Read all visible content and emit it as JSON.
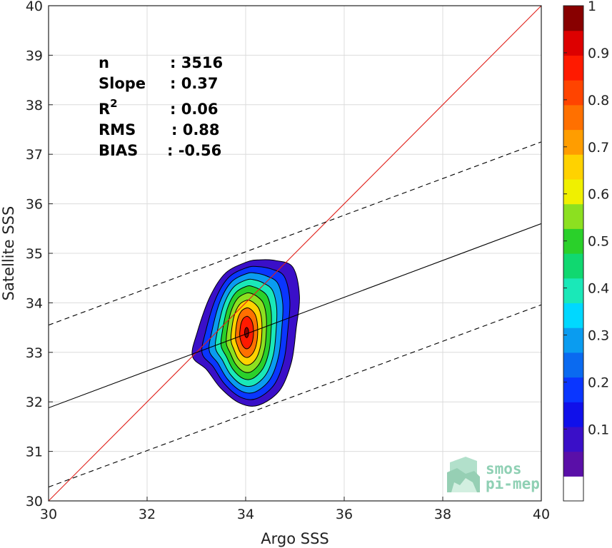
{
  "chart_data": {
    "type": "contour",
    "xlabel": "Argo SSS",
    "ylabel": "Satellite SSS",
    "xlim": [
      30,
      40
    ],
    "ylim": [
      30,
      40
    ],
    "x_ticks": [
      30,
      32,
      34,
      36,
      38,
      40
    ],
    "y_ticks": [
      30,
      31,
      32,
      33,
      34,
      35,
      36,
      37,
      38,
      39,
      40
    ],
    "grid": true,
    "stats": [
      {
        "label": "n",
        "value": ": 3516"
      },
      {
        "label": "Slope",
        "value": ": 0.37"
      },
      {
        "label": "R",
        "superscript": "2",
        "value": ": 0.06"
      },
      {
        "label": "RMS",
        "value": ": 0.88"
      },
      {
        "label": "BIAS",
        "value": ": -0.56"
      }
    ],
    "lines": [
      {
        "id": "one-to-one",
        "color": "#e0201a",
        "style": "solid",
        "points": [
          [
            30,
            30
          ],
          [
            40,
            40
          ]
        ]
      },
      {
        "id": "regression",
        "color": "#000000",
        "style": "solid",
        "points": [
          [
            30,
            31.88
          ],
          [
            40,
            35.6
          ]
        ]
      },
      {
        "id": "upper-bound",
        "color": "#000000",
        "style": "dashed",
        "points": [
          [
            30,
            33.55
          ],
          [
            40,
            37.25
          ]
        ]
      },
      {
        "id": "lower-bound",
        "color": "#000000",
        "style": "dashed",
        "points": [
          [
            30,
            30.28
          ],
          [
            40,
            33.96
          ]
        ]
      }
    ],
    "density_peak": {
      "x": 34.02,
      "y": 33.4
    },
    "contour_levels": [
      0.05,
      0.15,
      0.25,
      0.35,
      0.45,
      0.55,
      0.65,
      0.75,
      0.85,
      0.95
    ],
    "colorbar": {
      "ticks": [
        0.1,
        0.2,
        0.3,
        0.4,
        0.5,
        0.6,
        0.7,
        0.8,
        0.9,
        1
      ],
      "tick_labels": [
        "0.1",
        "0.2",
        "0.3",
        "0.4",
        "0.5",
        "0.6",
        "0.7",
        "0.8",
        "0.9",
        "1"
      ],
      "colors_bottom_to_top": [
        "#ffffff",
        "#5a0fa8",
        "#3a0fc8",
        "#1010ea",
        "#0a36ff",
        "#0a6af0",
        "#0a9cf0",
        "#00d8ff",
        "#1ae8b8",
        "#10d870",
        "#2ad02a",
        "#8ce020",
        "#f0f000",
        "#ffd200",
        "#ff9d00",
        "#ff7000",
        "#ff4400",
        "#ff1a00",
        "#dd0000",
        "#880000"
      ]
    }
  },
  "logo": {
    "line1": "smos",
    "line2": "pi-mep"
  }
}
